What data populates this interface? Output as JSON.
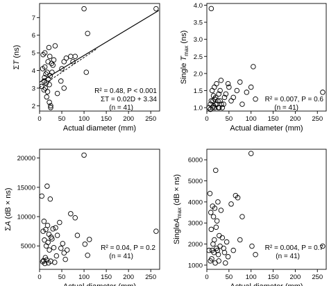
{
  "chart_data": [
    {
      "type": "scatter",
      "ylabel": "ΣT (ns)",
      "xlabel": "Actual diameter (mm)",
      "xlim": [
        0,
        270
      ],
      "ylim": [
        1.7,
        7.8
      ],
      "xticks": [
        0,
        50,
        100,
        150,
        200,
        250
      ],
      "yticks": [
        2,
        3,
        4,
        5,
        6,
        7
      ],
      "annotations": [
        "R² = 0.48, P < 0.001",
        "ΣT = 0.02D + 3.34",
        "(n = 41)"
      ],
      "lines": [
        {
          "style": "solid",
          "x": [
            0,
            268
          ],
          "y": [
            3.34,
            7.4
          ]
        },
        {
          "style": "dashed",
          "x": [
            0,
            130
          ],
          "y": [
            3.05,
            5.25
          ]
        }
      ],
      "points": [
        [
          5,
          3.1
        ],
        [
          7,
          4.1
        ],
        [
          8,
          4.9
        ],
        [
          10,
          2.9
        ],
        [
          10,
          3.4
        ],
        [
          11,
          3.6
        ],
        [
          12,
          4.2
        ],
        [
          12,
          5.0
        ],
        [
          13,
          3.0
        ],
        [
          14,
          3.8
        ],
        [
          15,
          3.3
        ],
        [
          16,
          2.5
        ],
        [
          17,
          3.9
        ],
        [
          18,
          2.8
        ],
        [
          19,
          4.5
        ],
        [
          20,
          3.5
        ],
        [
          21,
          5.3
        ],
        [
          22,
          2.2
        ],
        [
          22,
          3.2
        ],
        [
          23,
          4.8
        ],
        [
          24,
          3.7
        ],
        [
          25,
          2.0
        ],
        [
          25,
          1.9
        ],
        [
          27,
          4.4
        ],
        [
          28,
          3.9
        ],
        [
          30,
          4.3
        ],
        [
          32,
          4.6
        ],
        [
          35,
          5.4
        ],
        [
          40,
          2.7
        ],
        [
          48,
          3.4
        ],
        [
          50,
          4.1
        ],
        [
          55,
          3.0
        ],
        [
          55,
          4.5
        ],
        [
          60,
          4.7
        ],
        [
          70,
          4.8
        ],
        [
          75,
          4.5
        ],
        [
          80,
          4.8
        ],
        [
          100,
          7.5
        ],
        [
          105,
          3.9
        ],
        [
          108,
          6.1
        ],
        [
          262,
          7.5
        ]
      ]
    },
    {
      "type": "scatter",
      "ylabel": "Single Tmax (ns)",
      "xlabel": "Actual diameter (mm)",
      "xlim": [
        0,
        270
      ],
      "ylim": [
        0.9,
        4.05
      ],
      "xticks": [
        0,
        50,
        100,
        150,
        200,
        250
      ],
      "yticks": [
        1.0,
        1.5,
        2.0,
        2.5,
        3.0,
        3.5,
        4.0
      ],
      "annotations": [
        "R² = 0.007, P = 0.6",
        "(n = 41)"
      ],
      "points": [
        [
          5,
          1.0
        ],
        [
          8,
          1.1
        ],
        [
          8,
          0.95
        ],
        [
          10,
          1.2
        ],
        [
          10,
          3.9
        ],
        [
          12,
          1.5
        ],
        [
          13,
          1.0
        ],
        [
          14,
          1.2
        ],
        [
          15,
          1.35
        ],
        [
          15,
          1.05
        ],
        [
          17,
          1.6
        ],
        [
          18,
          1.0
        ],
        [
          18,
          1.25
        ],
        [
          20,
          1.1
        ],
        [
          20,
          1.3
        ],
        [
          22,
          1.7
        ],
        [
          23,
          1.1
        ],
        [
          25,
          1.2
        ],
        [
          26,
          1.0
        ],
        [
          27,
          1.4
        ],
        [
          28,
          1.0
        ],
        [
          30,
          1.5
        ],
        [
          30,
          1.2
        ],
        [
          32,
          1.8
        ],
        [
          33,
          1.1
        ],
        [
          35,
          1.0
        ],
        [
          38,
          1.1
        ],
        [
          40,
          1.3
        ],
        [
          43,
          1.4
        ],
        [
          50,
          1.6
        ],
        [
          55,
          1.2
        ],
        [
          60,
          1.3
        ],
        [
          68,
          1.5
        ],
        [
          75,
          1.75
        ],
        [
          80,
          1.1
        ],
        [
          90,
          1.45
        ],
        [
          100,
          1.6
        ],
        [
          105,
          2.2
        ],
        [
          110,
          1.25
        ],
        [
          262,
          1.45
        ],
        [
          48,
          1.7
        ]
      ]
    },
    {
      "type": "scatter",
      "ylabel": "ΣA (dB × ns)",
      "xlabel": "Actual diameter (mm)",
      "xlim": [
        0,
        270
      ],
      "ylim": [
        1000,
        21500
      ],
      "xticks": [
        0,
        50,
        100,
        150,
        200,
        250
      ],
      "yticks": [
        5000,
        10000,
        15000,
        20000
      ],
      "annotations": [
        "R² = 0.04, P = 0.2",
        "(n = 41)"
      ],
      "points": [
        [
          5,
          13500
        ],
        [
          7,
          2300
        ],
        [
          8,
          7500
        ],
        [
          9,
          2500
        ],
        [
          10,
          9200
        ],
        [
          11,
          6000
        ],
        [
          12,
          2000
        ],
        [
          13,
          3000
        ],
        [
          14,
          7800
        ],
        [
          15,
          5000
        ],
        [
          16,
          2600
        ],
        [
          17,
          15200
        ],
        [
          18,
          8500
        ],
        [
          19,
          5600
        ],
        [
          20,
          2100
        ],
        [
          21,
          7000
        ],
        [
          22,
          4300
        ],
        [
          24,
          13000
        ],
        [
          25,
          2400
        ],
        [
          26,
          6500
        ],
        [
          28,
          6200
        ],
        [
          30,
          7900
        ],
        [
          32,
          4700
        ],
        [
          34,
          2200
        ],
        [
          36,
          8100
        ],
        [
          40,
          6800
        ],
        [
          45,
          9000
        ],
        [
          48,
          4600
        ],
        [
          55,
          3800
        ],
        [
          58,
          2700
        ],
        [
          62,
          4300
        ],
        [
          70,
          10500
        ],
        [
          80,
          9800
        ],
        [
          85,
          6800
        ],
        [
          100,
          20500
        ],
        [
          102,
          5300
        ],
        [
          108,
          3400
        ],
        [
          112,
          6100
        ],
        [
          262,
          7500
        ],
        [
          52,
          5400
        ],
        [
          38,
          3300
        ]
      ]
    },
    {
      "type": "scatter",
      "ylabel": "Single Amax (dB × ns)",
      "xlabel": "Actual diameter (mm)",
      "xlim": [
        0,
        270
      ],
      "ylim": [
        800,
        6500
      ],
      "xticks": [
        0,
        50,
        100,
        150,
        200,
        250
      ],
      "yticks": [
        1000,
        2000,
        3000,
        4000,
        5000,
        6000
      ],
      "annotations": [
        "R² = 0.004, P = 0.7",
        "(n = 41)"
      ],
      "points": [
        [
          5,
          1700
        ],
        [
          7,
          4400
        ],
        [
          8,
          1200
        ],
        [
          9,
          3500
        ],
        [
          10,
          2700
        ],
        [
          11,
          1300
        ],
        [
          12,
          1700
        ],
        [
          13,
          3800
        ],
        [
          14,
          2000
        ],
        [
          15,
          3300
        ],
        [
          16,
          1600
        ],
        [
          17,
          2200
        ],
        [
          18,
          3700
        ],
        [
          19,
          1100
        ],
        [
          20,
          5500
        ],
        [
          21,
          2800
        ],
        [
          22,
          1800
        ],
        [
          23,
          3100
        ],
        [
          24,
          1700
        ],
        [
          25,
          4000
        ],
        [
          26,
          1500
        ],
        [
          27,
          1200
        ],
        [
          28,
          2400
        ],
        [
          30,
          1900
        ],
        [
          32,
          3600
        ],
        [
          35,
          2300
        ],
        [
          38,
          1800
        ],
        [
          40,
          1600
        ],
        [
          45,
          2100
        ],
        [
          48,
          1400
        ],
        [
          55,
          3900
        ],
        [
          60,
          1700
        ],
        [
          65,
          4300
        ],
        [
          70,
          4200
        ],
        [
          75,
          2200
        ],
        [
          80,
          3300
        ],
        [
          100,
          6300
        ],
        [
          102,
          1900
        ],
        [
          110,
          1500
        ],
        [
          262,
          1900
        ],
        [
          42,
          1100
        ]
      ]
    }
  ]
}
